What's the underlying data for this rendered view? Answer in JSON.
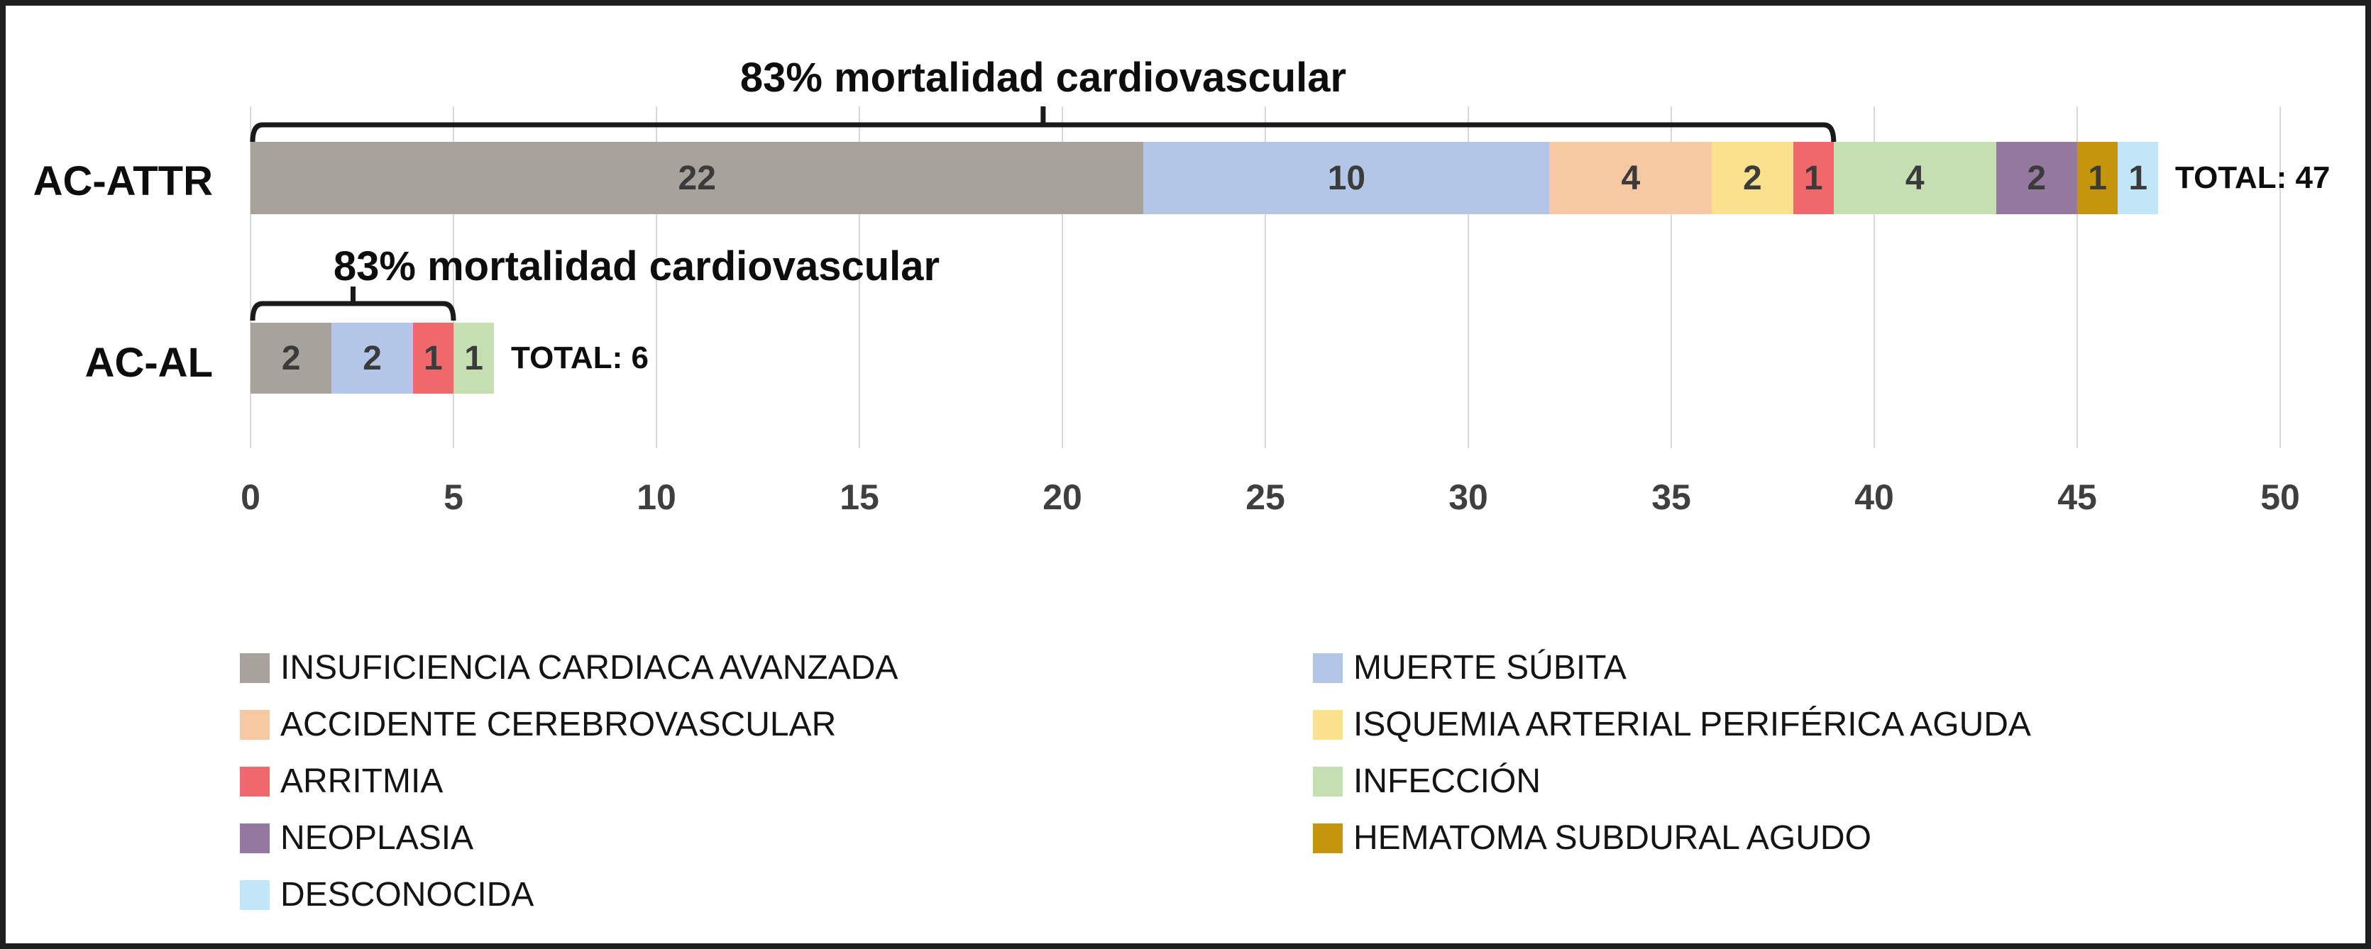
{
  "figure": {
    "background": "#ffffff",
    "border_color": "#1e1e1e"
  },
  "chart_data": {
    "type": "bar",
    "orientation": "horizontal",
    "stacked": true,
    "categories": [
      "AC-ATTR",
      "AC-AL"
    ],
    "series": [
      {
        "name": "INSUFICIENCIA CARDIACA AVANZADA",
        "color": "#a8a29c",
        "values": [
          22,
          2
        ]
      },
      {
        "name": "MUERTE SÚBITA",
        "color": "#b3c6e7",
        "values": [
          10,
          2
        ]
      },
      {
        "name": "ACCIDENTE CEREBROVASCULAR",
        "color": "#f6c9a3",
        "values": [
          4,
          0
        ]
      },
      {
        "name": "ISQUEMIA ARTERIAL PERIFÉRICA AGUDA",
        "color": "#fae28d",
        "values": [
          2,
          0
        ]
      },
      {
        "name": "ARRITMIA",
        "color": "#f0686c",
        "values": [
          1,
          1
        ]
      },
      {
        "name": "INFECCIÓN",
        "color": "#c5deb2",
        "values": [
          4,
          1
        ]
      },
      {
        "name": "NEOPLASIA",
        "color": "#94789f",
        "values": [
          2,
          0
        ]
      },
      {
        "name": "HEMATOMA SUBDURAL AGUDO",
        "color": "#c6950e",
        "values": [
          1,
          0
        ]
      },
      {
        "name": "DESCONOCIDA",
        "color": "#c0e6f7",
        "values": [
          1,
          0
        ]
      }
    ],
    "show_values": true,
    "category_totals": [
      47,
      6
    ],
    "totals": [
      "TOTAL: 47",
      "TOTAL: 6"
    ],
    "annotations": [
      {
        "text": "83% mortalidad cardiovascular",
        "applies_to": "AC-ATTR",
        "span_values": [
          0,
          39
        ]
      },
      {
        "text": "83% mortalidad cardiovascular",
        "applies_to": "AC-AL",
        "span_values": [
          0,
          5
        ]
      }
    ],
    "x_ticks": [
      0,
      5,
      10,
      15,
      20,
      25,
      30,
      35,
      40,
      45,
      50
    ],
    "xlim": [
      0,
      50
    ],
    "grid": true,
    "legend_position": "bottom-two-columns",
    "legend_columns": [
      [
        0,
        2,
        4,
        6,
        8
      ],
      [
        1,
        3,
        5,
        7
      ]
    ]
  }
}
